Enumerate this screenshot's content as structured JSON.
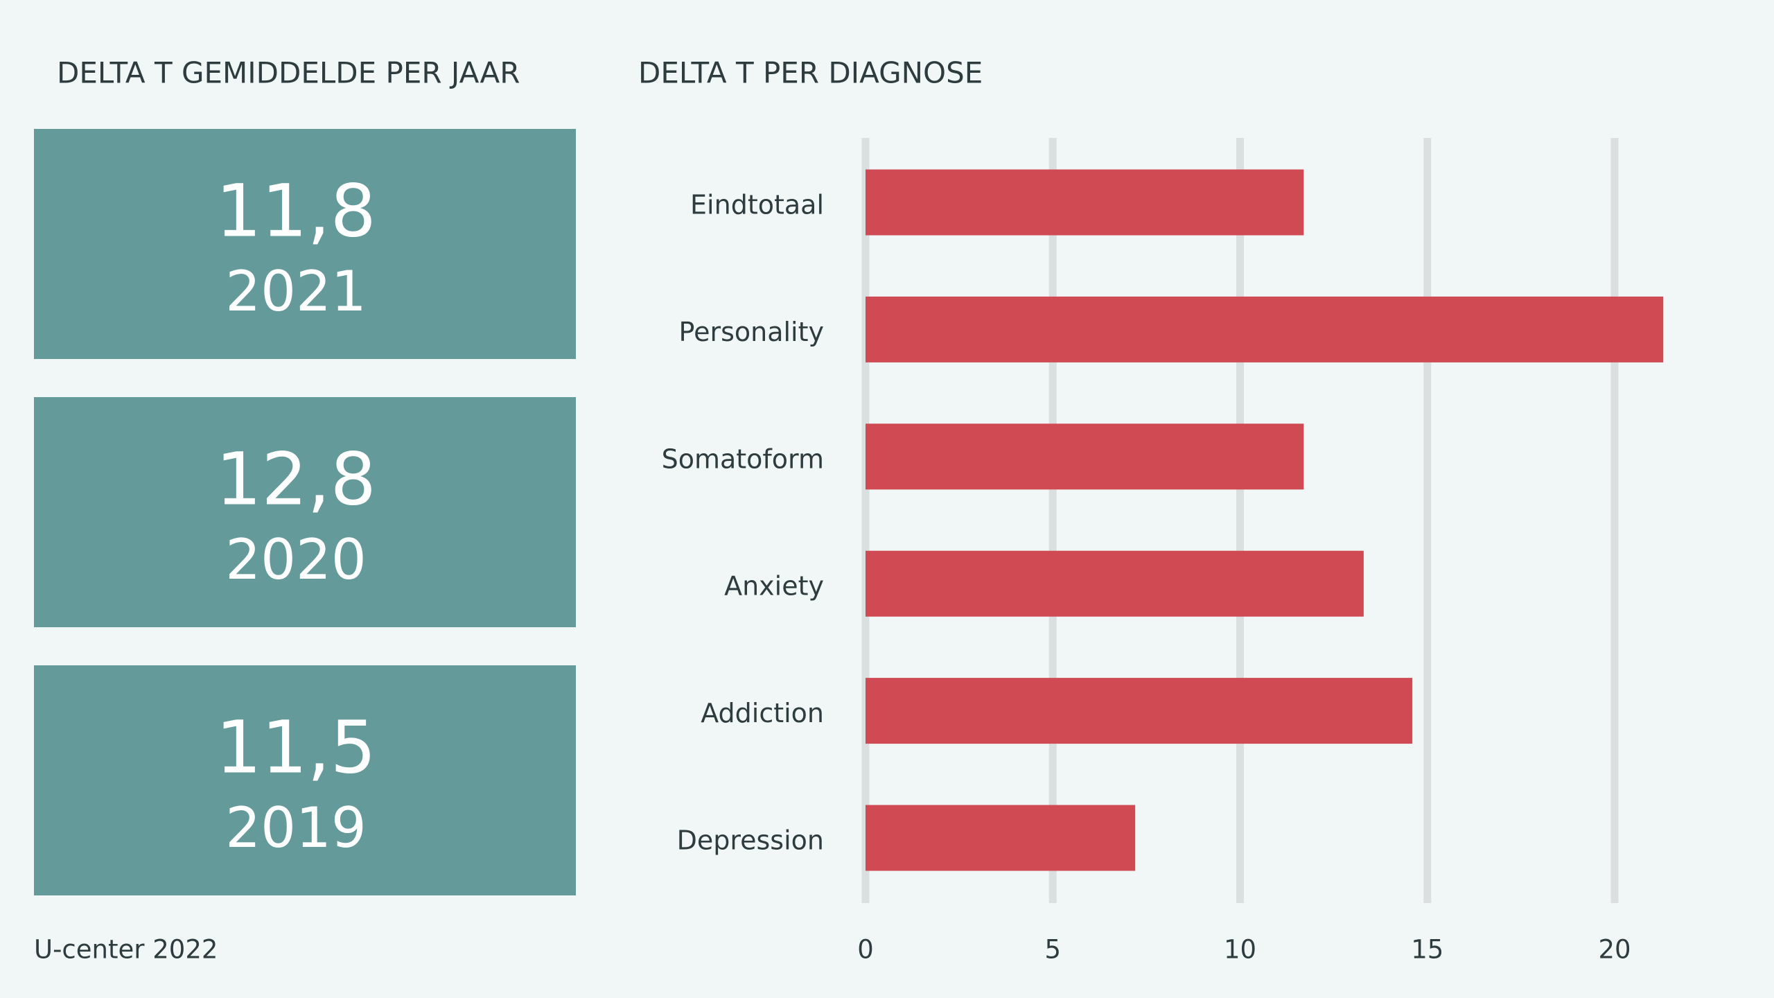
{
  "cards": {
    "title": "DELTA T GEMIDDELDE PER JAAR",
    "items": [
      {
        "value": "11,8",
        "year": "2021"
      },
      {
        "value": "12,8",
        "year": "2020"
      },
      {
        "value": "11,5",
        "year": "2019"
      }
    ],
    "color": "#649a9a"
  },
  "footer": "U-center 2022",
  "chart_data": {
    "type": "bar",
    "orientation": "horizontal",
    "title": "DELTA T PER DIAGNOSE",
    "categories": [
      "Eindtotaal",
      "Personality",
      "Somatoform",
      "Anxiety",
      "Addiction",
      "Depression"
    ],
    "values": [
      11.7,
      21.3,
      11.7,
      13.3,
      14.6,
      7.2
    ],
    "color": "#cf4a52",
    "xlim": [
      0,
      22
    ],
    "xticks": [
      0,
      5,
      10,
      15,
      20
    ],
    "grid": true
  }
}
